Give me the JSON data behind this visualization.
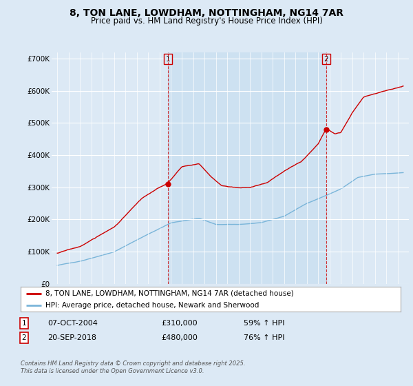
{
  "title_line1": "8, TON LANE, LOWDHAM, NOTTINGHAM, NG14 7AR",
  "title_line2": "Price paid vs. HM Land Registry's House Price Index (HPI)",
  "background_color": "#dce9f5",
  "plot_bg_color": "#dce9f5",
  "highlight_color": "#c8dff0",
  "ylim": [
    0,
    720000
  ],
  "yticks": [
    0,
    100000,
    200000,
    300000,
    400000,
    500000,
    600000,
    700000
  ],
  "ytick_labels": [
    "£0",
    "£100K",
    "£200K",
    "£300K",
    "£400K",
    "£500K",
    "£600K",
    "£700K"
  ],
  "hpi_color": "#7ab5d9",
  "price_color": "#cc0000",
  "marker1_x": 2004.77,
  "marker1_y": 310000,
  "marker2_x": 2018.72,
  "marker2_y": 480000,
  "legend_label1": "8, TON LANE, LOWDHAM, NOTTINGHAM, NG14 7AR (detached house)",
  "legend_label2": "HPI: Average price, detached house, Newark and Sherwood",
  "annotation1_date": "07-OCT-2004",
  "annotation1_price": "£310,000",
  "annotation1_hpi": "59% ↑ HPI",
  "annotation2_date": "20-SEP-2018",
  "annotation2_price": "£480,000",
  "annotation2_hpi": "76% ↑ HPI",
  "footer": "Contains HM Land Registry data © Crown copyright and database right 2025.\nThis data is licensed under the Open Government Licence v3.0.",
  "xmin": 1994.5,
  "xmax": 2026.0
}
